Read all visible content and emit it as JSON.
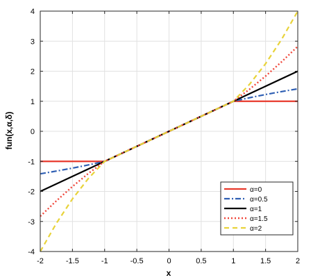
{
  "chart_data": {
    "type": "line",
    "xlabel": "x",
    "ylabel": "fun(x,α,δ)",
    "xlim": [
      -2,
      2
    ],
    "ylim": [
      -4,
      4
    ],
    "xticks": [
      -2,
      -1.5,
      -1,
      -0.5,
      0,
      0.5,
      1,
      1.5,
      2
    ],
    "xtick_labels": [
      "-2",
      "-1.5",
      "-1",
      "-0.5",
      "0",
      "0.5",
      "1",
      "1.5",
      "2"
    ],
    "yticks": [
      -4,
      -3,
      -2,
      -1,
      0,
      1,
      2,
      3,
      4
    ],
    "ytick_labels": [
      "-4",
      "-3",
      "-2",
      "-1",
      "0",
      "1",
      "2",
      "3",
      "4"
    ],
    "grid": true,
    "legend_position": "bottom-right",
    "series": [
      {
        "name": "α=0",
        "color": "#e8392c",
        "dash": "solid",
        "width": 2.2,
        "x": [
          -2,
          -1,
          1,
          2
        ],
        "y": [
          -1,
          -1,
          1,
          1
        ]
      },
      {
        "name": "α=0.5",
        "color": "#2f5fb3",
        "dash": "dashdot",
        "width": 2.2,
        "x": [
          -2,
          -1.75,
          -1.5,
          -1.25,
          -1,
          1,
          1.25,
          1.5,
          1.75,
          2
        ],
        "y": [
          -1.414,
          -1.323,
          -1.225,
          -1.118,
          -1,
          1,
          1.118,
          1.225,
          1.323,
          1.414
        ]
      },
      {
        "name": "α=1",
        "color": "#000000",
        "dash": "solid",
        "width": 2.2,
        "x": [
          -2,
          2
        ],
        "y": [
          -2,
          2
        ]
      },
      {
        "name": "α=1.5",
        "color": "#f0463a",
        "dash": "dotted",
        "width": 2.4,
        "x": [
          -2,
          -1.75,
          -1.5,
          -1.25,
          -1,
          1,
          1.25,
          1.5,
          1.75,
          2
        ],
        "y": [
          -2.828,
          -2.315,
          -1.837,
          -1.398,
          -1,
          1,
          1.398,
          1.837,
          2.315,
          2.828
        ]
      },
      {
        "name": "α=2",
        "color": "#e8d33a",
        "dash": "dashed",
        "width": 2.2,
        "x": [
          -2,
          -1.75,
          -1.5,
          -1.25,
          -1,
          1,
          1.25,
          1.5,
          1.75,
          2
        ],
        "y": [
          -4,
          -3.0625,
          -2.25,
          -1.5625,
          -1,
          1,
          1.5625,
          2.25,
          3.0625,
          4
        ]
      }
    ]
  }
}
